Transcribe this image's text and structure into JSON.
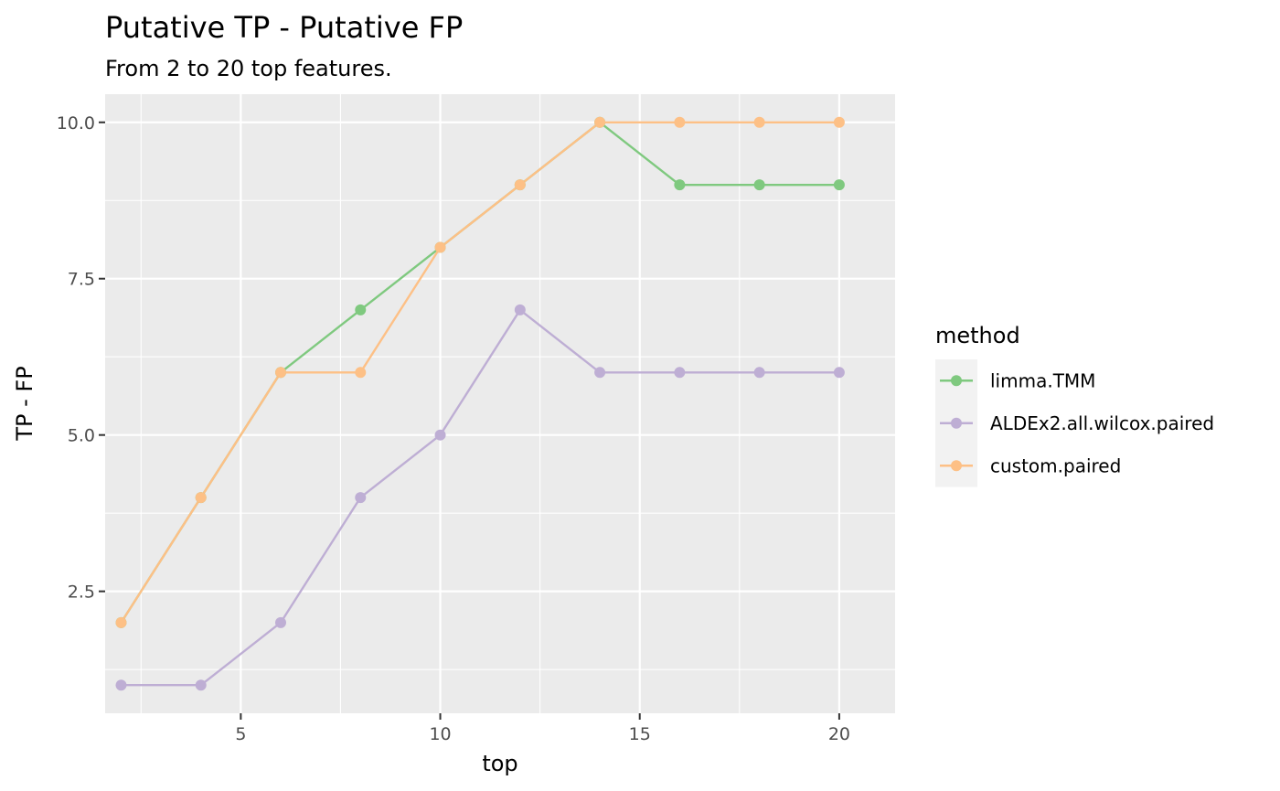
{
  "chart_data": {
    "type": "line",
    "title": "Putative TP - Putative FP",
    "subtitle": "From 2 to 20 top features.",
    "xlabel": "top",
    "ylabel": "TP - FP",
    "xlim": [
      1.6,
      21.4
    ],
    "ylim": [
      0.55,
      10.45
    ],
    "x_ticks": [
      5,
      10,
      15,
      20
    ],
    "x_tick_labels": [
      "5",
      "10",
      "15",
      "20"
    ],
    "y_ticks": [
      2.5,
      5.0,
      7.5,
      10.0
    ],
    "y_tick_labels": [
      "2.5",
      "5.0",
      "7.5",
      "10.0"
    ],
    "x": [
      2,
      4,
      6,
      8,
      10,
      12,
      14,
      16,
      18,
      20
    ],
    "grid": true,
    "legend": {
      "title": "method",
      "placement": "right"
    },
    "series": [
      {
        "name": "limma.TMM",
        "color": "#7fc97f",
        "values": [
          2,
          4,
          6,
          7,
          8,
          9,
          10,
          9,
          9,
          9
        ]
      },
      {
        "name": "ALDEx2.all.wilcox.paired",
        "color": "#beaed4",
        "values": [
          1,
          1,
          2,
          4,
          5,
          7,
          6,
          6,
          6,
          6
        ]
      },
      {
        "name": "custom.paired",
        "color": "#fdc086",
        "values": [
          2,
          4,
          6,
          6,
          8,
          9,
          10,
          10,
          10,
          10
        ]
      }
    ]
  }
}
